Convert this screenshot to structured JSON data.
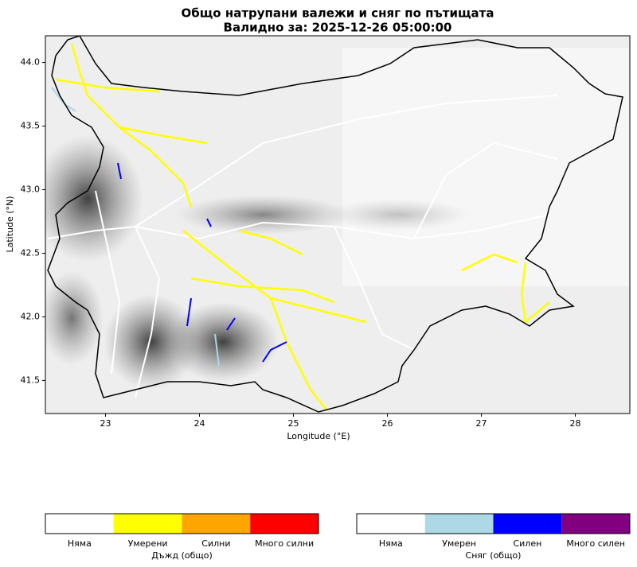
{
  "chart_data": {
    "type": "map",
    "title": "Общо натрупани валежи и сняг по пътищата",
    "subtitle": "Валидно за: 2025-12-26 05:00:00",
    "xlabel": "Longitude (°E)",
    "ylabel": "Latitude (°N)",
    "xlim": [
      22.36,
      28.58
    ],
    "ylim": [
      41.24,
      44.21
    ],
    "xticks": [
      23,
      24,
      25,
      26,
      27,
      28
    ],
    "yticks": [
      41.5,
      {
        "value": 42,
        "label": "42.0"
      },
      42.5,
      {
        "value": 43,
        "label": "43.0"
      },
      43.5,
      {
        "value": 44,
        "label": "44.0"
      }
    ],
    "legends": [
      {
        "title": "Дъжд (общо)",
        "items": [
          {
            "label": "Няма",
            "color": "#ffffff"
          },
          {
            "label": "Умерени",
            "color": "#ffff00"
          },
          {
            "label": "Силни",
            "color": "#ffa500"
          },
          {
            "label": "Много силни",
            "color": "#ff0000"
          }
        ]
      },
      {
        "title": "Сняг (общо)",
        "items": [
          {
            "label": "Няма",
            "color": "#ffffff"
          },
          {
            "label": "Умерен",
            "color": "#add8e6"
          },
          {
            "label": "Силен",
            "color": "#0000ff"
          },
          {
            "label": "Много силен",
            "color": "#800080"
          }
        ]
      }
    ]
  }
}
